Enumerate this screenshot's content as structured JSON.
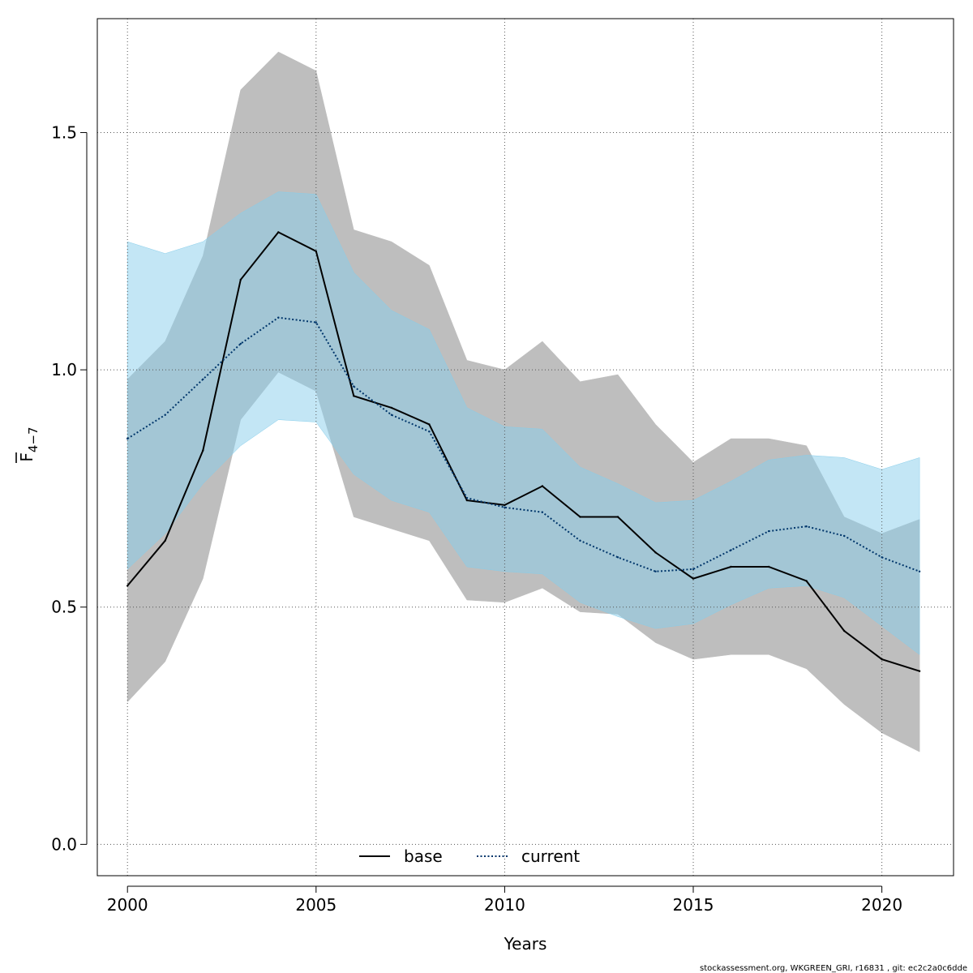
{
  "chart_data": {
    "type": "line",
    "title": "",
    "xlabel": "Years",
    "ylabel": "F",
    "ylabel_subscript": "4−7",
    "xlim": [
      1999.2,
      2021.9
    ],
    "ylim": [
      -0.066,
      1.74
    ],
    "x_ticks": [
      2000,
      2005,
      2010,
      2015,
      2020
    ],
    "y_ticks": [
      0.0,
      0.5,
      1.0,
      1.5
    ],
    "y_tick_labels": [
      "0.0",
      "0.5",
      "1.0",
      "1.5"
    ],
    "grid": true,
    "legend_position": "bottom-center",
    "x": [
      2000,
      2001,
      2002,
      2003,
      2004,
      2005,
      2006,
      2007,
      2008,
      2009,
      2010,
      2011,
      2012,
      2013,
      2014,
      2015,
      2016,
      2017,
      2018,
      2019,
      2020,
      2021
    ],
    "series": [
      {
        "name": "base",
        "line_style": "solid",
        "color": "#000000",
        "band_color": "#bebebe",
        "values": [
          0.545,
          0.64,
          0.83,
          1.19,
          1.29,
          1.25,
          0.945,
          0.92,
          0.885,
          0.725,
          0.715,
          0.755,
          0.69,
          0.69,
          0.615,
          0.56,
          0.585,
          0.585,
          0.555,
          0.45,
          0.39,
          0.365
        ],
        "lower": [
          0.3,
          0.385,
          0.56,
          0.895,
          0.995,
          0.955,
          0.69,
          0.665,
          0.64,
          0.515,
          0.51,
          0.54,
          0.49,
          0.485,
          0.425,
          0.39,
          0.4,
          0.4,
          0.37,
          0.295,
          0.235,
          0.195
        ],
        "upper": [
          0.98,
          1.06,
          1.24,
          1.59,
          1.67,
          1.63,
          1.295,
          1.27,
          1.22,
          1.02,
          1.0,
          1.06,
          0.975,
          0.99,
          0.885,
          0.805,
          0.855,
          0.855,
          0.84,
          0.69,
          0.655,
          0.685
        ]
      },
      {
        "name": "current",
        "line_style": "dotted",
        "color": "#00366b",
        "band_color": "#87ceeb",
        "values": [
          0.855,
          0.905,
          0.98,
          1.055,
          1.11,
          1.1,
          0.965,
          0.905,
          0.87,
          0.73,
          0.71,
          0.7,
          0.64,
          0.605,
          0.575,
          0.58,
          0.62,
          0.66,
          0.67,
          0.65,
          0.605,
          0.575
        ],
        "lower": [
          0.58,
          0.655,
          0.76,
          0.84,
          0.895,
          0.89,
          0.78,
          0.725,
          0.7,
          0.585,
          0.575,
          0.57,
          0.51,
          0.48,
          0.455,
          0.465,
          0.505,
          0.54,
          0.545,
          0.52,
          0.46,
          0.4
        ],
        "upper": [
          1.27,
          1.245,
          1.27,
          1.33,
          1.375,
          1.37,
          1.205,
          1.125,
          1.085,
          0.92,
          0.88,
          0.875,
          0.795,
          0.76,
          0.72,
          0.725,
          0.765,
          0.81,
          0.82,
          0.815,
          0.79,
          0.815
        ]
      }
    ]
  },
  "footer": {
    "text": "stockassessment.org, WKGREEN_GRI, r16831 , git: ec2c2a0c6dde"
  }
}
